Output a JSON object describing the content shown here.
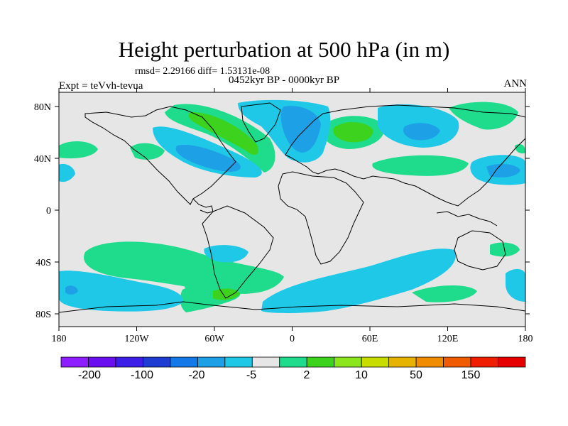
{
  "header": {
    "title": "Height perturbation at 500 hPa (in m)",
    "stats": "rmsd= 2.29166 diff= 1.53131e-08",
    "period": "0452kyr BP - 0000kyr BP",
    "experiment": "Expt = teVvh-tevua",
    "season": "ANN"
  },
  "axes": {
    "lat_ticks": [
      "80N",
      "40N",
      "0",
      "40S",
      "80S"
    ],
    "lon_ticks": [
      "180",
      "120W",
      "60W",
      "0",
      "60E",
      "120E",
      "180"
    ]
  },
  "colorbar": {
    "colors": [
      "#8c1eff",
      "#6a0ff0",
      "#3c1ee6",
      "#1e3cd2",
      "#1478e6",
      "#1ea0e6",
      "#1ec8e6",
      "#e6e6e6",
      "#1edc8c",
      "#3cd21e",
      "#8ce61e",
      "#c8dc00",
      "#e6b400",
      "#f08c00",
      "#f05a00",
      "#f01e00",
      "#e60000"
    ],
    "labels": [
      "-200",
      "-100",
      "-20",
      "-5",
      "2",
      "10",
      "50",
      "150"
    ]
  }
}
